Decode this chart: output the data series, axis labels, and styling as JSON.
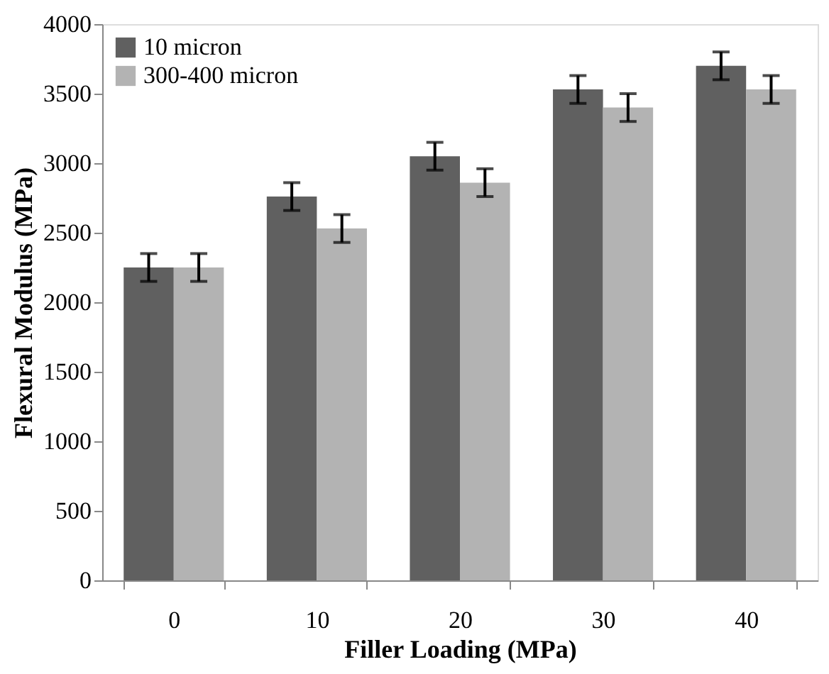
{
  "chart_data": {
    "type": "bar",
    "xlabel": "Filler Loading (MPa)",
    "ylabel": "Flexural Modulus (MPa)",
    "categories": [
      "0",
      "10",
      "20",
      "30",
      "40"
    ],
    "series": [
      {
        "name": "10 micron",
        "color": "#606060",
        "values": [
          2250,
          2760,
          3050,
          3530,
          3700
        ],
        "errors": [
          100,
          100,
          100,
          100,
          100
        ]
      },
      {
        "name": "300-400 micron",
        "color": "#b3b3b3",
        "values": [
          2250,
          2530,
          2860,
          3400,
          3530
        ],
        "errors": [
          100,
          100,
          100,
          100,
          100
        ]
      }
    ],
    "ylim": [
      0,
      4000
    ],
    "yticks": [
      0,
      500,
      1000,
      1500,
      2000,
      2500,
      3000,
      3500,
      4000
    ],
    "grid": false,
    "legend": "top left"
  }
}
